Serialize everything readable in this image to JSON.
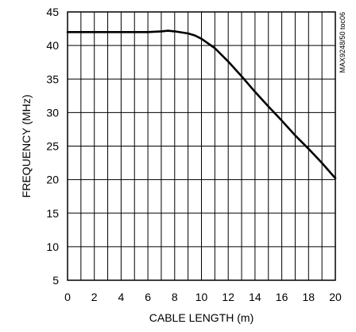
{
  "chart_data": {
    "type": "line",
    "title": "",
    "xlabel": "CABLE LENGTH (m)",
    "ylabel": "FREQUENCY (MHz)",
    "xlim": [
      0,
      20
    ],
    "ylim": [
      5,
      45
    ],
    "xticks": [
      "0",
      "2",
      "4",
      "6",
      "8",
      "10",
      "12",
      "14",
      "16",
      "18",
      "20"
    ],
    "yticks": [
      "5",
      "10",
      "15",
      "20",
      "25",
      "30",
      "35",
      "40",
      "45"
    ],
    "grid": true,
    "tag": "MAX9248/50 toc06",
    "series": [
      {
        "x": [
          0,
          2,
          4,
          6,
          7,
          7.5,
          8,
          9,
          9.5,
          10,
          10.5,
          11,
          12,
          13,
          14,
          15,
          16,
          17,
          18,
          19,
          20
        ],
        "y": [
          42.0,
          42.0,
          42.0,
          42.0,
          42.1,
          42.2,
          42.1,
          41.8,
          41.5,
          41.0,
          40.3,
          39.6,
          37.6,
          35.4,
          33.1,
          30.9,
          28.8,
          26.6,
          24.6,
          22.5,
          20.2
        ]
      }
    ]
  }
}
